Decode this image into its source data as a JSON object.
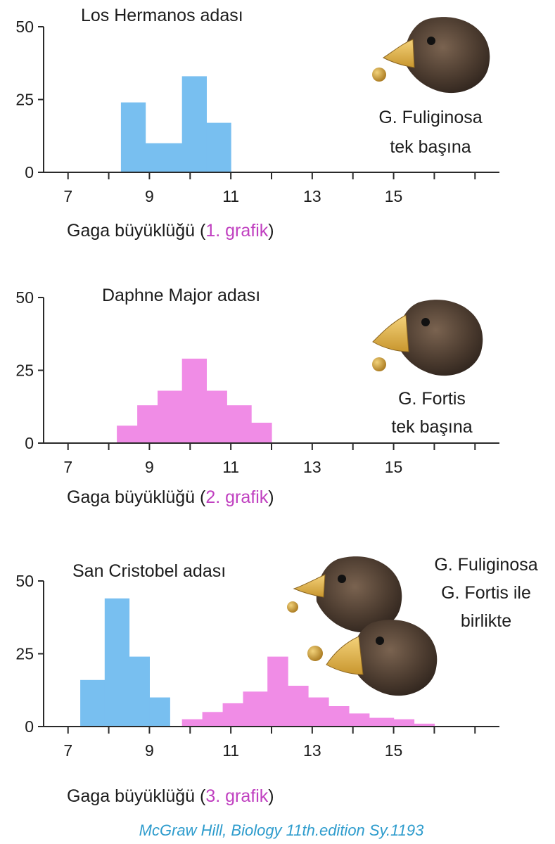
{
  "colors": {
    "fuliginosa": "#78bff0",
    "fortis": "#f08ce6",
    "accent": "#c040c0",
    "source": "#2e9ccd"
  },
  "chart_data": [
    {
      "type": "bar",
      "title": "Los Hermanos adası",
      "xlabel_prefix": "Gaga büyüklüğü (",
      "xlabel_accent": "1. grafik",
      "xlabel_suffix": ")",
      "x_ticks": [
        "7",
        "9",
        "11",
        "13",
        "15"
      ],
      "y_ticks": [
        "0",
        "25",
        "50"
      ],
      "xlim": [
        6.4,
        17.6
      ],
      "ylim": [
        0,
        50
      ],
      "species_labels": [
        "G. Fuliginosa",
        "tek başına"
      ],
      "series": [
        {
          "species": "fuliginosa",
          "bins": [
            [
              8.3,
              8.9,
              24
            ],
            [
              8.9,
              9.8,
              10
            ],
            [
              9.8,
              10.4,
              33
            ],
            [
              10.4,
              11.0,
              17
            ]
          ]
        }
      ]
    },
    {
      "type": "bar",
      "title": "Daphne Major adası",
      "xlabel_prefix": "Gaga büyüklüğü (",
      "xlabel_accent": "2. grafik",
      "xlabel_suffix": ")",
      "x_ticks": [
        "7",
        "9",
        "11",
        "13",
        "15"
      ],
      "y_ticks": [
        "0",
        "25",
        "50"
      ],
      "xlim": [
        6.4,
        17.6
      ],
      "ylim": [
        0,
        50
      ],
      "species_labels": [
        "G. Fortis",
        "tek başına"
      ],
      "series": [
        {
          "species": "fortis",
          "bins": [
            [
              8.2,
              8.7,
              6
            ],
            [
              8.7,
              9.2,
              13
            ],
            [
              9.2,
              9.8,
              18
            ],
            [
              9.8,
              10.4,
              29
            ],
            [
              10.4,
              10.9,
              18
            ],
            [
              10.9,
              11.5,
              13
            ],
            [
              11.5,
              12.0,
              7
            ]
          ]
        }
      ]
    },
    {
      "type": "bar",
      "title": "San Cristobel adası",
      "xlabel_prefix": "Gaga büyüklüğü (",
      "xlabel_accent": "3. grafik",
      "xlabel_suffix": ")",
      "x_ticks": [
        "7",
        "9",
        "11",
        "13",
        "15"
      ],
      "y_ticks": [
        "0",
        "25",
        "50"
      ],
      "xlim": [
        6.4,
        17.6
      ],
      "ylim": [
        0,
        50
      ],
      "species_labels": [
        "G. Fuliginosa",
        "G. Fortis ile",
        "birlikte"
      ],
      "series": [
        {
          "species": "fuliginosa",
          "bins": [
            [
              7.3,
              7.9,
              16
            ],
            [
              7.9,
              8.5,
              44
            ],
            [
              8.5,
              9.0,
              24
            ],
            [
              9.0,
              9.5,
              10
            ]
          ]
        },
        {
          "species": "fortis",
          "bins": [
            [
              9.8,
              10.3,
              2.5
            ],
            [
              10.3,
              10.8,
              5
            ],
            [
              10.8,
              11.3,
              8
            ],
            [
              11.3,
              11.9,
              12
            ],
            [
              11.9,
              12.4,
              24
            ],
            [
              12.4,
              12.9,
              14
            ],
            [
              12.9,
              13.4,
              10
            ],
            [
              13.4,
              13.9,
              7
            ],
            [
              13.9,
              14.4,
              4.5
            ],
            [
              14.4,
              15.0,
              3
            ],
            [
              15.0,
              15.5,
              2.5
            ],
            [
              15.5,
              16.0,
              1
            ]
          ]
        }
      ]
    }
  ],
  "source": "McGraw Hill, Biology 11th.edition Sy.1193"
}
